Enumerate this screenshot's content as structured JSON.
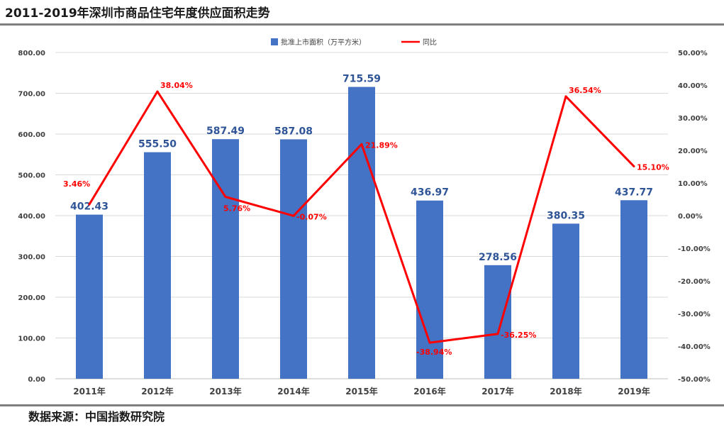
{
  "title": "2011-2019年深圳市商品住宅年度供应面积走势",
  "source": "数据来源：中国指数研究院",
  "colors": {
    "bar": "#4472C4",
    "bar_label": "#2F5597",
    "line": "#FF0000",
    "line_label": "#FF0000",
    "grid": "#D9D9D9",
    "axis_text": "#404040"
  },
  "chart_data": {
    "type": "bar",
    "categories": [
      "2011年",
      "2012年",
      "2013年",
      "2014年",
      "2015年",
      "2016年",
      "2017年",
      "2018年",
      "2019年"
    ],
    "series": [
      {
        "name": "批准上市面积（万平方米）",
        "type": "bar",
        "axis": "left",
        "values": [
          402.43,
          555.5,
          587.49,
          587.08,
          715.59,
          436.97,
          278.56,
          380.35,
          437.77
        ],
        "labels": [
          "402.43",
          "555.50",
          "587.49",
          "587.08",
          "715.59",
          "436.97",
          "278.56",
          "380.35",
          "437.77"
        ]
      },
      {
        "name": "同比",
        "type": "line",
        "axis": "right",
        "values": [
          3.46,
          38.04,
          5.76,
          -0.07,
          21.89,
          -38.94,
          -36.25,
          36.54,
          15.1
        ],
        "labels": [
          "3.46%",
          "38.04%",
          "5.76%",
          "-0.07%",
          "21.89%",
          "-38.94%",
          "-36.25%",
          "36.54%",
          "15.10%"
        ]
      }
    ],
    "y_left": {
      "min": 0,
      "max": 800,
      "ticks": [
        "0.00",
        "100.00",
        "200.00",
        "300.00",
        "400.00",
        "500.00",
        "600.00",
        "700.00",
        "800.00"
      ]
    },
    "y_right": {
      "min": -50,
      "max": 50,
      "ticks": [
        "-50.00%",
        "-40.00%",
        "-30.00%",
        "-20.00%",
        "-10.00%",
        "0.00%",
        "10.00%",
        "20.00%",
        "30.00%",
        "40.00%",
        "50.00%"
      ]
    },
    "grid": true,
    "legend_position": "top"
  }
}
